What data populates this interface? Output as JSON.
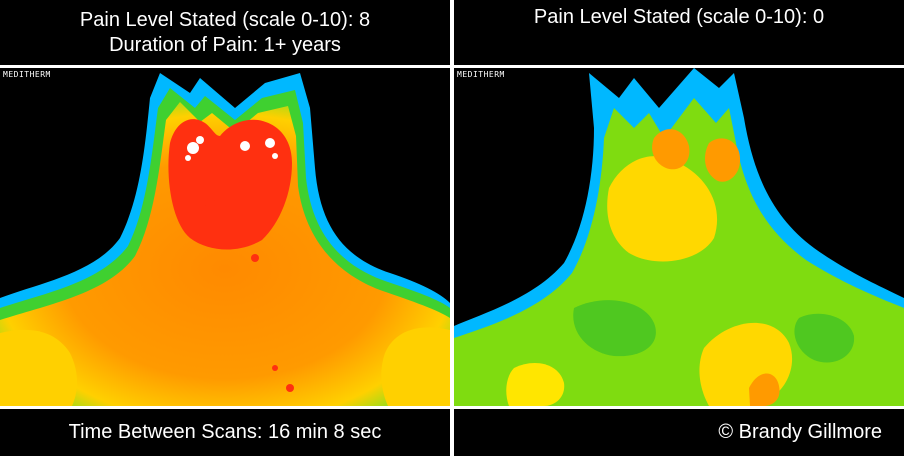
{
  "left_panel": {
    "pain_level": "Pain Level Stated (scale 0-10): 8",
    "duration": "Duration of Pain: 1+ years",
    "brand": "MEDITHERM"
  },
  "right_panel": {
    "pain_level": "Pain Level Stated (scale 0-10): 0",
    "brand": "MEDITHERM"
  },
  "footer": {
    "time_between": "Time Between Scans:  16 min 8 sec",
    "copyright": "© Brandy Gillmore"
  },
  "colors": {
    "background": "#000000",
    "text": "#ffffff",
    "thermal_hot": "#ff2a10",
    "thermal_warm": "#ff8c00",
    "thermal_mid": "#ffd400",
    "thermal_cool": "#8fe000",
    "thermal_cold": "#00b4ff"
  }
}
